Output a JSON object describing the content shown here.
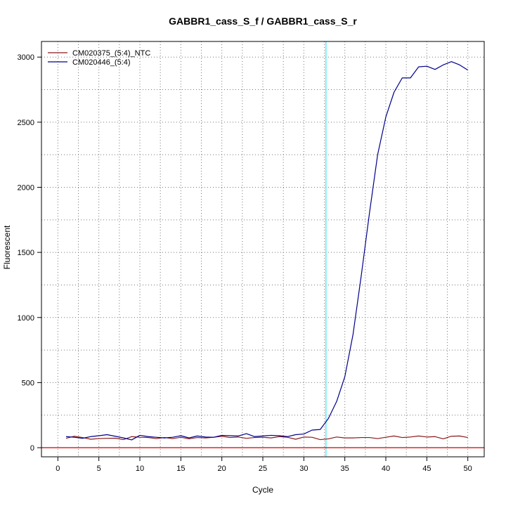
{
  "chart_data": {
    "type": "line",
    "title": "GABBR1_cass_S_f / GABBR1_cass_S_r",
    "xlabel": "Cycle",
    "ylabel": "Fluorescent",
    "xlim": [
      -2,
      52
    ],
    "ylim": [
      -70,
      3120
    ],
    "xticks": [
      0,
      5,
      10,
      15,
      20,
      25,
      30,
      35,
      40,
      45,
      50
    ],
    "yticks": [
      0,
      500,
      1000,
      1500,
      2000,
      2500,
      3000
    ],
    "grid": true,
    "legend_position": "top-left",
    "threshold_x": 32.7,
    "threshold_color": "#00e5ee",
    "baseline_y": 0,
    "baseline_color": "#cc0000",
    "x": [
      1,
      2,
      3,
      4,
      5,
      6,
      7,
      8,
      9,
      10,
      11,
      12,
      13,
      14,
      15,
      16,
      17,
      18,
      19,
      20,
      21,
      22,
      23,
      24,
      25,
      26,
      27,
      28,
      29,
      30,
      31,
      32,
      33,
      34,
      35,
      36,
      37,
      38,
      39,
      40,
      41,
      42,
      43,
      44,
      45,
      46,
      47,
      48,
      49,
      50
    ],
    "series": [
      {
        "name": "CM020375_(5:4)_NTC",
        "color": "#8b1a1a",
        "values": [
          72,
          88,
          78,
          65,
          70,
          72,
          73,
          62,
          85,
          80,
          78,
          70,
          78,
          70,
          80,
          68,
          78,
          75,
          80,
          88,
          78,
          82,
          72,
          78,
          80,
          75,
          85,
          80,
          65,
          82,
          80,
          62,
          68,
          82,
          75,
          75,
          78,
          78,
          70,
          80,
          90,
          78,
          82,
          90,
          82,
          85,
          68,
          88,
          90,
          78
        ]
      },
      {
        "name": "CM020446_(5:4)",
        "color": "#00008b",
        "values": [
          85,
          80,
          72,
          85,
          92,
          100,
          88,
          75,
          60,
          95,
          85,
          80,
          75,
          80,
          92,
          75,
          90,
          82,
          80,
          95,
          92,
          90,
          108,
          85,
          90,
          95,
          92,
          85,
          100,
          105,
          135,
          140,
          225,
          355,
          545,
          870,
          1320,
          1800,
          2250,
          2540,
          2730,
          2840,
          2840,
          2925,
          2930,
          2905,
          2940,
          2965,
          2940,
          2900
        ]
      }
    ]
  }
}
